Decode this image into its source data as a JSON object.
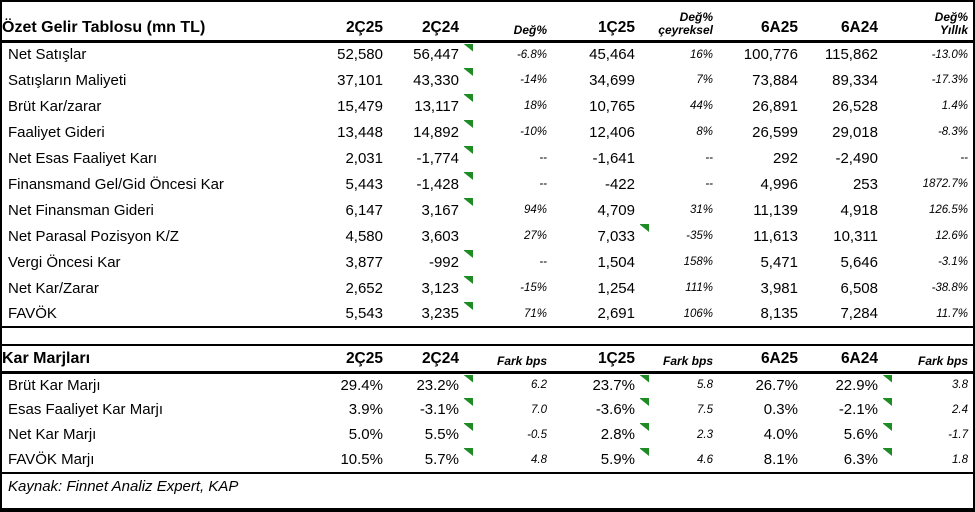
{
  "accent": {
    "flag_color": "#1f8b24",
    "border_color": "#000000"
  },
  "income_table": {
    "title": "Özet Gelir Tablosu (mn TL)",
    "headers": [
      {
        "label": "2Ç25"
      },
      {
        "label": "2Ç24"
      },
      {
        "label": "Değ%",
        "italic": true
      },
      {
        "label": "1Ç25"
      },
      {
        "label": "Değ%",
        "label2": "çeyreksel",
        "italic": true
      },
      {
        "label": "6A25"
      },
      {
        "label": "6A24"
      },
      {
        "label": "Değ%",
        "label2": "Yıllık",
        "italic": true
      }
    ],
    "rows": [
      {
        "label": "Net Satışlar",
        "values": [
          "52,580",
          "56,447",
          "-6.8%",
          "45,464",
          "16%",
          "100,776",
          "115,862",
          "-13.0%"
        ],
        "flags": [
          2
        ]
      },
      {
        "label": "Satışların Maliyeti",
        "values": [
          "37,101",
          "43,330",
          "-14%",
          "34,699",
          "7%",
          "73,884",
          "89,334",
          "-17.3%"
        ],
        "flags": [
          2
        ]
      },
      {
        "label": "Brüt Kar/zarar",
        "values": [
          "15,479",
          "13,117",
          "18%",
          "10,765",
          "44%",
          "26,891",
          "26,528",
          "1.4%"
        ],
        "flags": [
          2
        ]
      },
      {
        "label": "Faaliyet Gideri",
        "values": [
          "13,448",
          "14,892",
          "-10%",
          "12,406",
          "8%",
          "26,599",
          "29,018",
          "-8.3%"
        ],
        "flags": [
          2
        ]
      },
      {
        "label": "Net Esas Faaliyet Karı",
        "values": [
          "2,031",
          "-1,774",
          "--",
          "-1,641",
          "--",
          "292",
          "-2,490",
          "--"
        ],
        "flags": [
          2
        ]
      },
      {
        "label": "Finansmand Gel/Gid Öncesi Kar",
        "values": [
          "5,443",
          "-1,428",
          "--",
          "-422",
          "--",
          "4,996",
          "253",
          "1872.7%"
        ],
        "flags": [
          2
        ]
      },
      {
        "label": "Net Finansman Gideri",
        "values": [
          "6,147",
          "3,167",
          "94%",
          "4,709",
          "31%",
          "11,139",
          "4,918",
          "126.5%"
        ],
        "flags": [
          2
        ]
      },
      {
        "label": "Net Parasal Pozisyon K/Z",
        "values": [
          "4,580",
          "3,603",
          "27%",
          "7,033",
          "-35%",
          "11,613",
          "10,311",
          "12.6%"
        ],
        "flags": [
          4
        ]
      },
      {
        "label": "Vergi Öncesi Kar",
        "values": [
          "3,877",
          "-992",
          "--",
          "1,504",
          "158%",
          "5,471",
          "5,646",
          "-3.1%"
        ],
        "flags": [
          2
        ]
      },
      {
        "label": "Net Kar/Zarar",
        "values": [
          "2,652",
          "3,123",
          "-15%",
          "1,254",
          "111%",
          "3,981",
          "6,508",
          "-38.8%"
        ],
        "flags": [
          2
        ]
      },
      {
        "label": "FAVÖK",
        "values": [
          "5,543",
          "3,235",
          "71%",
          "2,691",
          "106%",
          "8,135",
          "7,284",
          "11.7%"
        ],
        "flags": [
          2
        ]
      }
    ]
  },
  "margins_table": {
    "title": "Kar Marjları",
    "headers": [
      {
        "label": "2Ç25"
      },
      {
        "label": "2Ç24"
      },
      {
        "label": "Fark bps",
        "italic": true
      },
      {
        "label": "1Ç25"
      },
      {
        "label": "Fark bps",
        "italic": true
      },
      {
        "label": "6A25"
      },
      {
        "label": "6A24"
      },
      {
        "label": "Fark bps",
        "italic": true
      }
    ],
    "rows": [
      {
        "label": "Brüt Kar Marjı",
        "values": [
          "29.4%",
          "23.2%",
          "6.2",
          "23.7%",
          "5.8",
          "26.7%",
          "22.9%",
          "3.8"
        ],
        "flags": [
          2,
          4,
          7
        ]
      },
      {
        "label": "Esas Faaliyet Kar Marjı",
        "values": [
          "3.9%",
          "-3.1%",
          "7.0",
          "-3.6%",
          "7.5",
          "0.3%",
          "-2.1%",
          "2.4"
        ],
        "flags": [
          2,
          4,
          7
        ]
      },
      {
        "label": "Net Kar Marjı",
        "values": [
          "5.0%",
          "5.5%",
          "-0.5",
          "2.8%",
          "2.3",
          "4.0%",
          "5.6%",
          "-1.7"
        ],
        "flags": [
          2,
          4,
          7
        ]
      },
      {
        "label": "FAVÖK Marjı",
        "values": [
          "10.5%",
          "5.7%",
          "4.8",
          "5.9%",
          "4.6",
          "8.1%",
          "6.3%",
          "1.8"
        ],
        "flags": [
          2,
          4,
          7
        ]
      }
    ]
  },
  "source": {
    "text": "Kaynak: Finnet Analiz Expert, KAP"
  }
}
